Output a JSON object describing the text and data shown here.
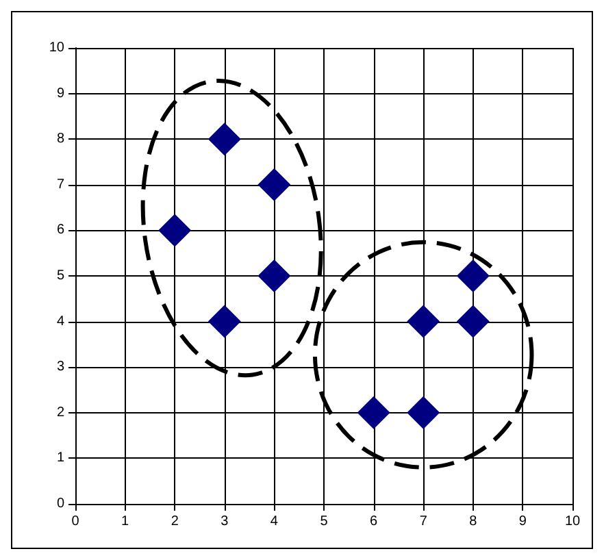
{
  "chart_data": {
    "type": "scatter",
    "series": [
      {
        "color": "#000080",
        "x": [
          2,
          3,
          4,
          4,
          3,
          6,
          7,
          7,
          8,
          8
        ],
        "values": [
          6,
          8,
          7,
          5,
          4,
          2,
          2,
          4,
          4,
          5
        ]
      }
    ],
    "xlim": [
      0,
      10
    ],
    "xticks": [
      0,
      1,
      2,
      3,
      4,
      5,
      6,
      7,
      8,
      9,
      10
    ],
    "ylim": [
      0,
      10
    ],
    "yticks": [
      0,
      1,
      2,
      3,
      4,
      5,
      6,
      7,
      8,
      9,
      10
    ],
    "grid": true,
    "marker": "diamond"
  }
}
